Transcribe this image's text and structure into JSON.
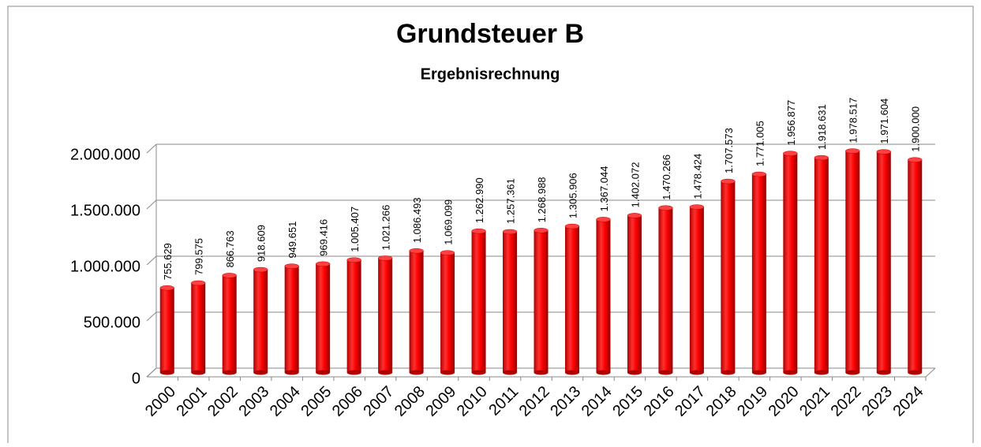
{
  "chart_data": {
    "type": "bar",
    "title": "Grundsteuer B",
    "subtitle": "Ergebnisrechnung",
    "categories": [
      "2000",
      "2001",
      "2002",
      "2003",
      "2004",
      "2005",
      "2006",
      "2007",
      "2008",
      "2009",
      "2010",
      "2011",
      "2012",
      "2013",
      "2014",
      "2015",
      "2016",
      "2017",
      "2018",
      "2019",
      "2020",
      "2021",
      "2022",
      "2023",
      "2024"
    ],
    "values": [
      755629,
      799575,
      866763,
      918609,
      949651,
      969416,
      1005407,
      1021266,
      1086493,
      1069099,
      1262990,
      1257361,
      1268988,
      1305906,
      1367044,
      1402072,
      1470266,
      1478424,
      1707573,
      1771005,
      1956877,
      1918631,
      1978517,
      1971604,
      1900000
    ],
    "value_labels": [
      "755.629",
      "799.575",
      "866.763",
      "918.609",
      "949.651",
      "969.416",
      "1.005.407",
      "1.021.266",
      "1.086.493",
      "1.069.099",
      "1.262.990",
      "1.257.361",
      "1.268.988",
      "1.305.906",
      "1.367.044",
      "1.402.072",
      "1.470.266",
      "1.478.424",
      "1.707.573",
      "1.771.005",
      "1.956.877",
      "1.918.631",
      "1.978.517",
      "1.971.604",
      "1.900.000"
    ],
    "color": "#ff0000",
    "ylim": [
      0,
      2000000
    ],
    "yticks": [
      0,
      {
        "value": 500000,
        "label": "500.000"
      },
      {
        "value": 1000000,
        "label": "1.000.000"
      },
      {
        "value": 1500000,
        "label": "1.500.000"
      },
      {
        "value": 2000000,
        "label": "2.000.000"
      }
    ],
    "grid": true
  }
}
